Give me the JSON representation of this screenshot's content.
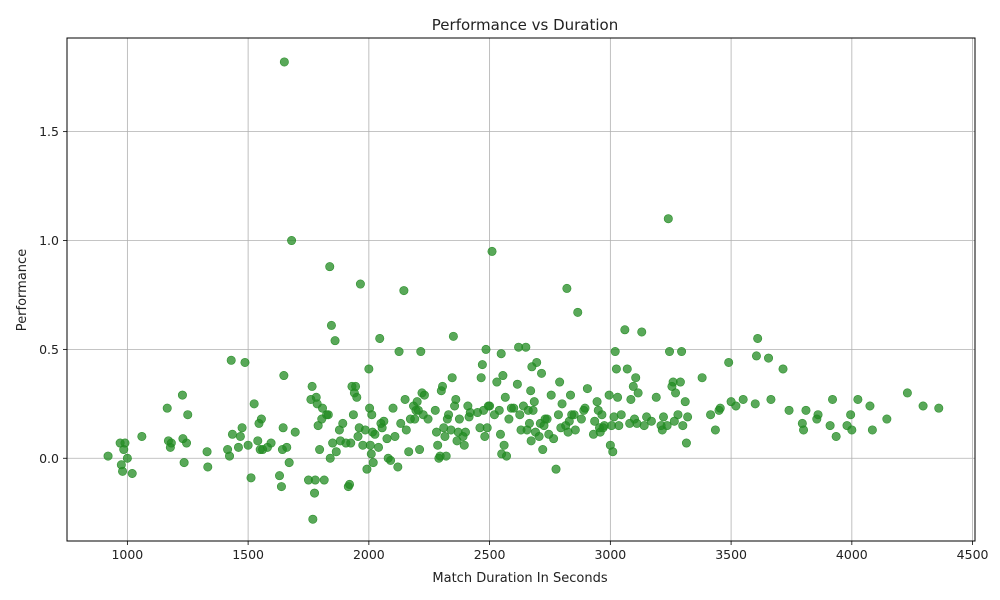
{
  "chart_data": {
    "type": "scatter",
    "title": "Performance vs Duration",
    "xlabel": "Match Duration In Seconds",
    "ylabel": "Performance",
    "xlim": [
      750,
      4510
    ],
    "ylim": [
      -0.38,
      1.93
    ],
    "xticks": [
      1000,
      1500,
      2000,
      2500,
      3000,
      3500,
      4000,
      4500
    ],
    "yticks": [
      0.0,
      0.5,
      1.0,
      1.5
    ],
    "grid": true,
    "marker_color": "#228B22",
    "points": [
      [
        920,
        0.01
      ],
      [
        970,
        0.07
      ],
      [
        975,
        -0.03
      ],
      [
        980,
        -0.06
      ],
      [
        985,
        0.04
      ],
      [
        990,
        0.07
      ],
      [
        1000,
        0.0
      ],
      [
        1020,
        -0.07
      ],
      [
        1060,
        0.1
      ],
      [
        1165,
        0.23
      ],
      [
        1170,
        0.08
      ],
      [
        1178,
        0.05
      ],
      [
        1182,
        0.07
      ],
      [
        1228,
        0.29
      ],
      [
        1230,
        0.09
      ],
      [
        1235,
        -0.02
      ],
      [
        1245,
        0.07
      ],
      [
        1250,
        0.2
      ],
      [
        1330,
        0.03
      ],
      [
        1333,
        -0.04
      ],
      [
        1415,
        0.04
      ],
      [
        1423,
        0.01
      ],
      [
        1430,
        0.45
      ],
      [
        1435,
        0.11
      ],
      [
        1460,
        0.05
      ],
      [
        1468,
        0.1
      ],
      [
        1475,
        0.14
      ],
      [
        1487,
        0.44
      ],
      [
        1500,
        0.06
      ],
      [
        1512,
        -0.09
      ],
      [
        1525,
        0.25
      ],
      [
        1540,
        0.08
      ],
      [
        1545,
        0.16
      ],
      [
        1550,
        0.04
      ],
      [
        1555,
        0.18
      ],
      [
        1560,
        0.04
      ],
      [
        1580,
        0.05
      ],
      [
        1595,
        0.07
      ],
      [
        1630,
        -0.08
      ],
      [
        1638,
        -0.13
      ],
      [
        1642,
        0.04
      ],
      [
        1645,
        0.14
      ],
      [
        1648,
        0.38
      ],
      [
        1650,
        1.82
      ],
      [
        1660,
        0.05
      ],
      [
        1670,
        -0.02
      ],
      [
        1680,
        1.0
      ],
      [
        1695,
        0.12
      ],
      [
        1750,
        -0.1
      ],
      [
        1760,
        0.27
      ],
      [
        1765,
        0.33
      ],
      [
        1768,
        -0.28
      ],
      [
        1775,
        -0.16
      ],
      [
        1778,
        -0.1
      ],
      [
        1782,
        0.28
      ],
      [
        1786,
        0.25
      ],
      [
        1790,
        0.15
      ],
      [
        1796,
        0.04
      ],
      [
        1805,
        0.18
      ],
      [
        1808,
        0.23
      ],
      [
        1815,
        -0.1
      ],
      [
        1825,
        0.2
      ],
      [
        1832,
        0.2
      ],
      [
        1838,
        0.88
      ],
      [
        1840,
        0.0
      ],
      [
        1845,
        0.61
      ],
      [
        1850,
        0.07
      ],
      [
        1860,
        0.54
      ],
      [
        1865,
        0.03
      ],
      [
        1878,
        0.13
      ],
      [
        1882,
        0.08
      ],
      [
        1892,
        0.16
      ],
      [
        1905,
        0.07
      ],
      [
        1915,
        -0.13
      ],
      [
        1920,
        -0.12
      ],
      [
        1925,
        0.07
      ],
      [
        1930,
        0.33
      ],
      [
        1936,
        0.2
      ],
      [
        1940,
        0.3
      ],
      [
        1945,
        0.33
      ],
      [
        1950,
        0.28
      ],
      [
        1955,
        0.1
      ],
      [
        1960,
        0.14
      ],
      [
        1965,
        0.8
      ],
      [
        1975,
        0.06
      ],
      [
        1985,
        0.13
      ],
      [
        1992,
        -0.05
      ],
      [
        2000,
        0.41
      ],
      [
        2003,
        0.23
      ],
      [
        2006,
        0.06
      ],
      [
        2010,
        0.02
      ],
      [
        2012,
        0.2
      ],
      [
        2015,
        0.12
      ],
      [
        2018,
        -0.02
      ],
      [
        2025,
        0.11
      ],
      [
        2040,
        0.05
      ],
      [
        2045,
        0.55
      ],
      [
        2050,
        0.16
      ],
      [
        2055,
        0.14
      ],
      [
        2062,
        0.17
      ],
      [
        2075,
        0.09
      ],
      [
        2080,
        0.0
      ],
      [
        2090,
        -0.01
      ],
      [
        2100,
        0.23
      ],
      [
        2108,
        0.1
      ],
      [
        2120,
        -0.04
      ],
      [
        2125,
        0.49
      ],
      [
        2132,
        0.16
      ],
      [
        2145,
        0.77
      ],
      [
        2150,
        0.27
      ],
      [
        2155,
        0.13
      ],
      [
        2165,
        0.03
      ],
      [
        2172,
        0.18
      ],
      [
        2185,
        0.24
      ],
      [
        2190,
        0.18
      ],
      [
        2195,
        0.22
      ],
      [
        2200,
        0.26
      ],
      [
        2205,
        0.22
      ],
      [
        2210,
        0.04
      ],
      [
        2215,
        0.49
      ],
      [
        2220,
        0.3
      ],
      [
        2225,
        0.2
      ],
      [
        2230,
        0.29
      ],
      [
        2245,
        0.18
      ],
      [
        2275,
        0.22
      ],
      [
        2280,
        0.12
      ],
      [
        2285,
        0.06
      ],
      [
        2290,
        0.0
      ],
      [
        2295,
        0.01
      ],
      [
        2300,
        0.31
      ],
      [
        2305,
        0.33
      ],
      [
        2310,
        0.14
      ],
      [
        2315,
        0.1
      ],
      [
        2320,
        0.01
      ],
      [
        2325,
        0.18
      ],
      [
        2330,
        0.2
      ],
      [
        2340,
        0.13
      ],
      [
        2345,
        0.37
      ],
      [
        2350,
        0.56
      ],
      [
        2355,
        0.24
      ],
      [
        2360,
        0.27
      ],
      [
        2365,
        0.08
      ],
      [
        2370,
        0.12
      ],
      [
        2375,
        0.18
      ],
      [
        2390,
        0.1
      ],
      [
        2395,
        0.06
      ],
      [
        2400,
        0.12
      ],
      [
        2410,
        0.24
      ],
      [
        2415,
        0.19
      ],
      [
        2420,
        0.21
      ],
      [
        2450,
        0.21
      ],
      [
        2460,
        0.14
      ],
      [
        2465,
        0.37
      ],
      [
        2470,
        0.43
      ],
      [
        2475,
        0.22
      ],
      [
        2480,
        0.1
      ],
      [
        2485,
        0.5
      ],
      [
        2490,
        0.14
      ],
      [
        2495,
        0.24
      ],
      [
        2500,
        0.24
      ],
      [
        2510,
        0.95
      ],
      [
        2520,
        0.2
      ],
      [
        2530,
        0.35
      ],
      [
        2540,
        0.22
      ],
      [
        2545,
        0.11
      ],
      [
        2548,
        0.48
      ],
      [
        2550,
        0.02
      ],
      [
        2555,
        0.38
      ],
      [
        2560,
        0.06
      ],
      [
        2565,
        0.28
      ],
      [
        2570,
        0.01
      ],
      [
        2580,
        0.18
      ],
      [
        2590,
        0.23
      ],
      [
        2600,
        0.23
      ],
      [
        2615,
        0.34
      ],
      [
        2620,
        0.51
      ],
      [
        2625,
        0.2
      ],
      [
        2630,
        0.13
      ],
      [
        2640,
        0.24
      ],
      [
        2650,
        0.51
      ],
      [
        2655,
        0.13
      ],
      [
        2660,
        0.22
      ],
      [
        2665,
        0.16
      ],
      [
        2670,
        0.31
      ],
      [
        2672,
        0.08
      ],
      [
        2675,
        0.42
      ],
      [
        2680,
        0.22
      ],
      [
        2685,
        0.26
      ],
      [
        2690,
        0.12
      ],
      [
        2695,
        0.44
      ],
      [
        2705,
        0.1
      ],
      [
        2710,
        0.16
      ],
      [
        2715,
        0.39
      ],
      [
        2720,
        0.04
      ],
      [
        2725,
        0.15
      ],
      [
        2730,
        0.18
      ],
      [
        2738,
        0.18
      ],
      [
        2745,
        0.11
      ],
      [
        2755,
        0.29
      ],
      [
        2765,
        0.09
      ],
      [
        2775,
        -0.05
      ],
      [
        2785,
        0.2
      ],
      [
        2790,
        0.35
      ],
      [
        2795,
        0.14
      ],
      [
        2800,
        0.25
      ],
      [
        2815,
        0.15
      ],
      [
        2820,
        0.78
      ],
      [
        2825,
        0.12
      ],
      [
        2830,
        0.17
      ],
      [
        2835,
        0.29
      ],
      [
        2840,
        0.2
      ],
      [
        2850,
        0.2
      ],
      [
        2855,
        0.13
      ],
      [
        2865,
        0.67
      ],
      [
        2880,
        0.18
      ],
      [
        2890,
        0.22
      ],
      [
        2895,
        0.23
      ],
      [
        2905,
        0.32
      ],
      [
        2930,
        0.11
      ],
      [
        2935,
        0.17
      ],
      [
        2945,
        0.26
      ],
      [
        2950,
        0.22
      ],
      [
        2955,
        0.14
      ],
      [
        2958,
        0.12
      ],
      [
        2965,
        0.2
      ],
      [
        2970,
        0.14
      ],
      [
        2975,
        0.15
      ],
      [
        2995,
        0.29
      ],
      [
        3000,
        0.06
      ],
      [
        3005,
        0.15
      ],
      [
        3010,
        0.03
      ],
      [
        3015,
        0.19
      ],
      [
        3020,
        0.49
      ],
      [
        3025,
        0.41
      ],
      [
        3030,
        0.28
      ],
      [
        3035,
        0.15
      ],
      [
        3045,
        0.2
      ],
      [
        3060,
        0.59
      ],
      [
        3070,
        0.41
      ],
      [
        3080,
        0.16
      ],
      [
        3085,
        0.27
      ],
      [
        3095,
        0.33
      ],
      [
        3100,
        0.18
      ],
      [
        3105,
        0.37
      ],
      [
        3110,
        0.16
      ],
      [
        3115,
        0.3
      ],
      [
        3130,
        0.58
      ],
      [
        3140,
        0.15
      ],
      [
        3150,
        0.19
      ],
      [
        3170,
        0.17
      ],
      [
        3190,
        0.28
      ],
      [
        3210,
        0.15
      ],
      [
        3215,
        0.13
      ],
      [
        3220,
        0.19
      ],
      [
        3235,
        0.15
      ],
      [
        3240,
        1.1
      ],
      [
        3245,
        0.49
      ],
      [
        3255,
        0.33
      ],
      [
        3260,
        0.35
      ],
      [
        3265,
        0.17
      ],
      [
        3270,
        0.3
      ],
      [
        3280,
        0.2
      ],
      [
        3290,
        0.35
      ],
      [
        3295,
        0.49
      ],
      [
        3300,
        0.15
      ],
      [
        3310,
        0.26
      ],
      [
        3315,
        0.07
      ],
      [
        3320,
        0.19
      ],
      [
        3380,
        0.37
      ],
      [
        3415,
        0.2
      ],
      [
        3435,
        0.13
      ],
      [
        3450,
        0.22
      ],
      [
        3455,
        0.23
      ],
      [
        3490,
        0.44
      ],
      [
        3500,
        0.26
      ],
      [
        3520,
        0.24
      ],
      [
        3550,
        0.27
      ],
      [
        3600,
        0.25
      ],
      [
        3605,
        0.47
      ],
      [
        3610,
        0.55
      ],
      [
        3655,
        0.46
      ],
      [
        3665,
        0.27
      ],
      [
        3715,
        0.41
      ],
      [
        3740,
        0.22
      ],
      [
        3795,
        0.16
      ],
      [
        3800,
        0.13
      ],
      [
        3810,
        0.22
      ],
      [
        3855,
        0.18
      ],
      [
        3860,
        0.2
      ],
      [
        3910,
        0.15
      ],
      [
        3920,
        0.27
      ],
      [
        3935,
        0.1
      ],
      [
        3980,
        0.15
      ],
      [
        3995,
        0.2
      ],
      [
        4000,
        0.13
      ],
      [
        4025,
        0.27
      ],
      [
        4075,
        0.24
      ],
      [
        4085,
        0.13
      ],
      [
        4145,
        0.18
      ],
      [
        4230,
        0.3
      ],
      [
        4295,
        0.24
      ],
      [
        4360,
        0.23
      ]
    ]
  }
}
